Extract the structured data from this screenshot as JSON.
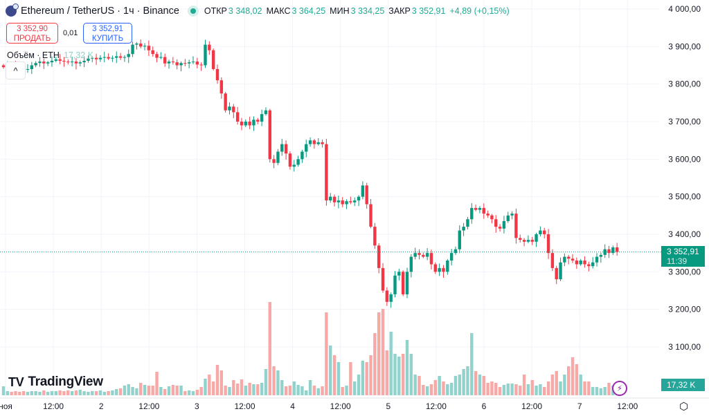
{
  "header": {
    "symbol_title": "Ethereum / TetherUS · 1ч · Binance",
    "open_label": "ОТКР",
    "open_value": "3 348,02",
    "high_label": "МАКС",
    "high_value": "3 364,25",
    "low_label": "МИН",
    "low_value": "3 334,25",
    "close_label": "ЗАКР",
    "close_value": "3 352,91",
    "change_value": "+4,89 (+0,15%)"
  },
  "trade": {
    "sell_price": "3 352,90",
    "sell_label": "ПРОДАТЬ",
    "spread": "0,01",
    "buy_price": "3 352,91",
    "buy_label": "КУПИТЬ"
  },
  "volume_legend": {
    "label": "Объём · ETH",
    "value": "17,32 K"
  },
  "collapse_icon": "chevron-up-icon",
  "branding": "TradingView",
  "current_price": {
    "price": "3 352,91",
    "countdown": "11:39"
  },
  "current_volume": "17,32 K",
  "colors": {
    "up": "#089981",
    "down": "#f23645",
    "volume_up": "#92d2cc",
    "volume_down": "#f7a9a7",
    "grid": "#f0f3fa",
    "price_line": "#089981"
  },
  "chart_data": {
    "type": "candlestick",
    "interval": "1ч",
    "price_axis_ticks": [
      "4 000,00",
      "3 900,00",
      "3 800,00",
      "3 700,00",
      "3 600,00",
      "3 500,00",
      "3 400,00",
      "3 300,00",
      "3 200,00",
      "3 100,00"
    ],
    "price_axis_values": [
      4000,
      3900,
      3800,
      3700,
      3600,
      3500,
      3400,
      3300,
      3200,
      3100
    ],
    "time_axis_ticks": [
      "ноя",
      "12:00",
      "2",
      "12:00",
      "3",
      "12:00",
      "4",
      "12:00",
      "5",
      "12:00",
      "6",
      "12:00",
      "7",
      "12:00"
    ],
    "ylim": [
      3050,
      4010
    ],
    "grid": true,
    "close": [
      3845,
      3850,
      3848,
      3846,
      3842,
      3838,
      3840,
      3850,
      3856,
      3860,
      3855,
      3858,
      3862,
      3866,
      3862,
      3860,
      3858,
      3860,
      3855,
      3858,
      3862,
      3868,
      3870,
      3866,
      3870,
      3872,
      3868,
      3870,
      3874,
      3870,
      3872,
      3880,
      3905,
      3908,
      3900,
      3902,
      3890,
      3880,
      3870,
      3872,
      3855,
      3860,
      3858,
      3850,
      3856,
      3855,
      3858,
      3860,
      3852,
      3850,
      3905,
      3890,
      3840,
      3810,
      3775,
      3730,
      3740,
      3725,
      3700,
      3690,
      3700,
      3690,
      3705,
      3700,
      3720,
      3730,
      3600,
      3590,
      3620,
      3640,
      3615,
      3580,
      3585,
      3600,
      3620,
      3640,
      3650,
      3640,
      3645,
      3640,
      3490,
      3500,
      3485,
      3490,
      3480,
      3488,
      3485,
      3490,
      3500,
      3530,
      3480,
      3420,
      3370,
      3310,
      3250,
      3220,
      3240,
      3290,
      3300,
      3240,
      3300,
      3340,
      3350,
      3345,
      3340,
      3350,
      3320,
      3300,
      3310,
      3300,
      3330,
      3350,
      3360,
      3410,
      3420,
      3440,
      3470,
      3465,
      3470,
      3455,
      3450,
      3440,
      3420,
      3415,
      3435,
      3450,
      3455,
      3390,
      3385,
      3380,
      3385,
      3380,
      3400,
      3410,
      3400,
      3350,
      3310,
      3280,
      3325,
      3340,
      3335,
      3330,
      3320,
      3330,
      3320,
      3315,
      3325,
      3340,
      3345,
      3360,
      3350,
      3365,
      3352.91
    ],
    "volume_k": [
      13,
      6,
      5,
      6,
      5,
      6,
      5,
      6,
      6,
      5,
      7,
      5,
      6,
      6,
      7,
      6,
      7,
      6,
      7,
      8,
      6,
      5,
      6,
      6,
      7,
      5,
      6,
      7,
      9,
      10,
      14,
      16,
      12,
      10,
      18,
      15,
      14,
      14,
      34,
      12,
      9,
      13,
      15,
      14,
      14,
      6,
      7,
      6,
      8,
      12,
      24,
      30,
      20,
      44,
      36,
      14,
      12,
      22,
      17,
      23,
      14,
      18,
      16,
      16,
      18,
      38,
      135,
      42,
      36,
      22,
      13,
      14,
      20,
      15,
      13,
      7,
      22,
      14,
      10,
      13,
      120,
      72,
      58,
      48,
      12,
      14,
      48,
      20,
      30,
      50,
      48,
      58,
      90,
      120,
      125,
      65,
      92,
      60,
      56,
      60,
      80,
      60,
      30,
      28,
      15,
      13,
      16,
      22,
      28,
      20,
      16,
      18,
      28,
      30,
      38,
      42,
      90,
      35,
      30,
      28,
      18,
      20,
      18,
      12,
      15,
      17,
      17,
      16,
      14,
      30,
      16,
      22,
      14,
      16,
      12,
      20,
      30,
      35,
      20,
      30,
      42,
      55,
      45,
      30,
      20,
      20,
      12,
      12,
      10,
      12,
      18,
      14,
      17.32
    ],
    "last_price": 3352.91
  }
}
